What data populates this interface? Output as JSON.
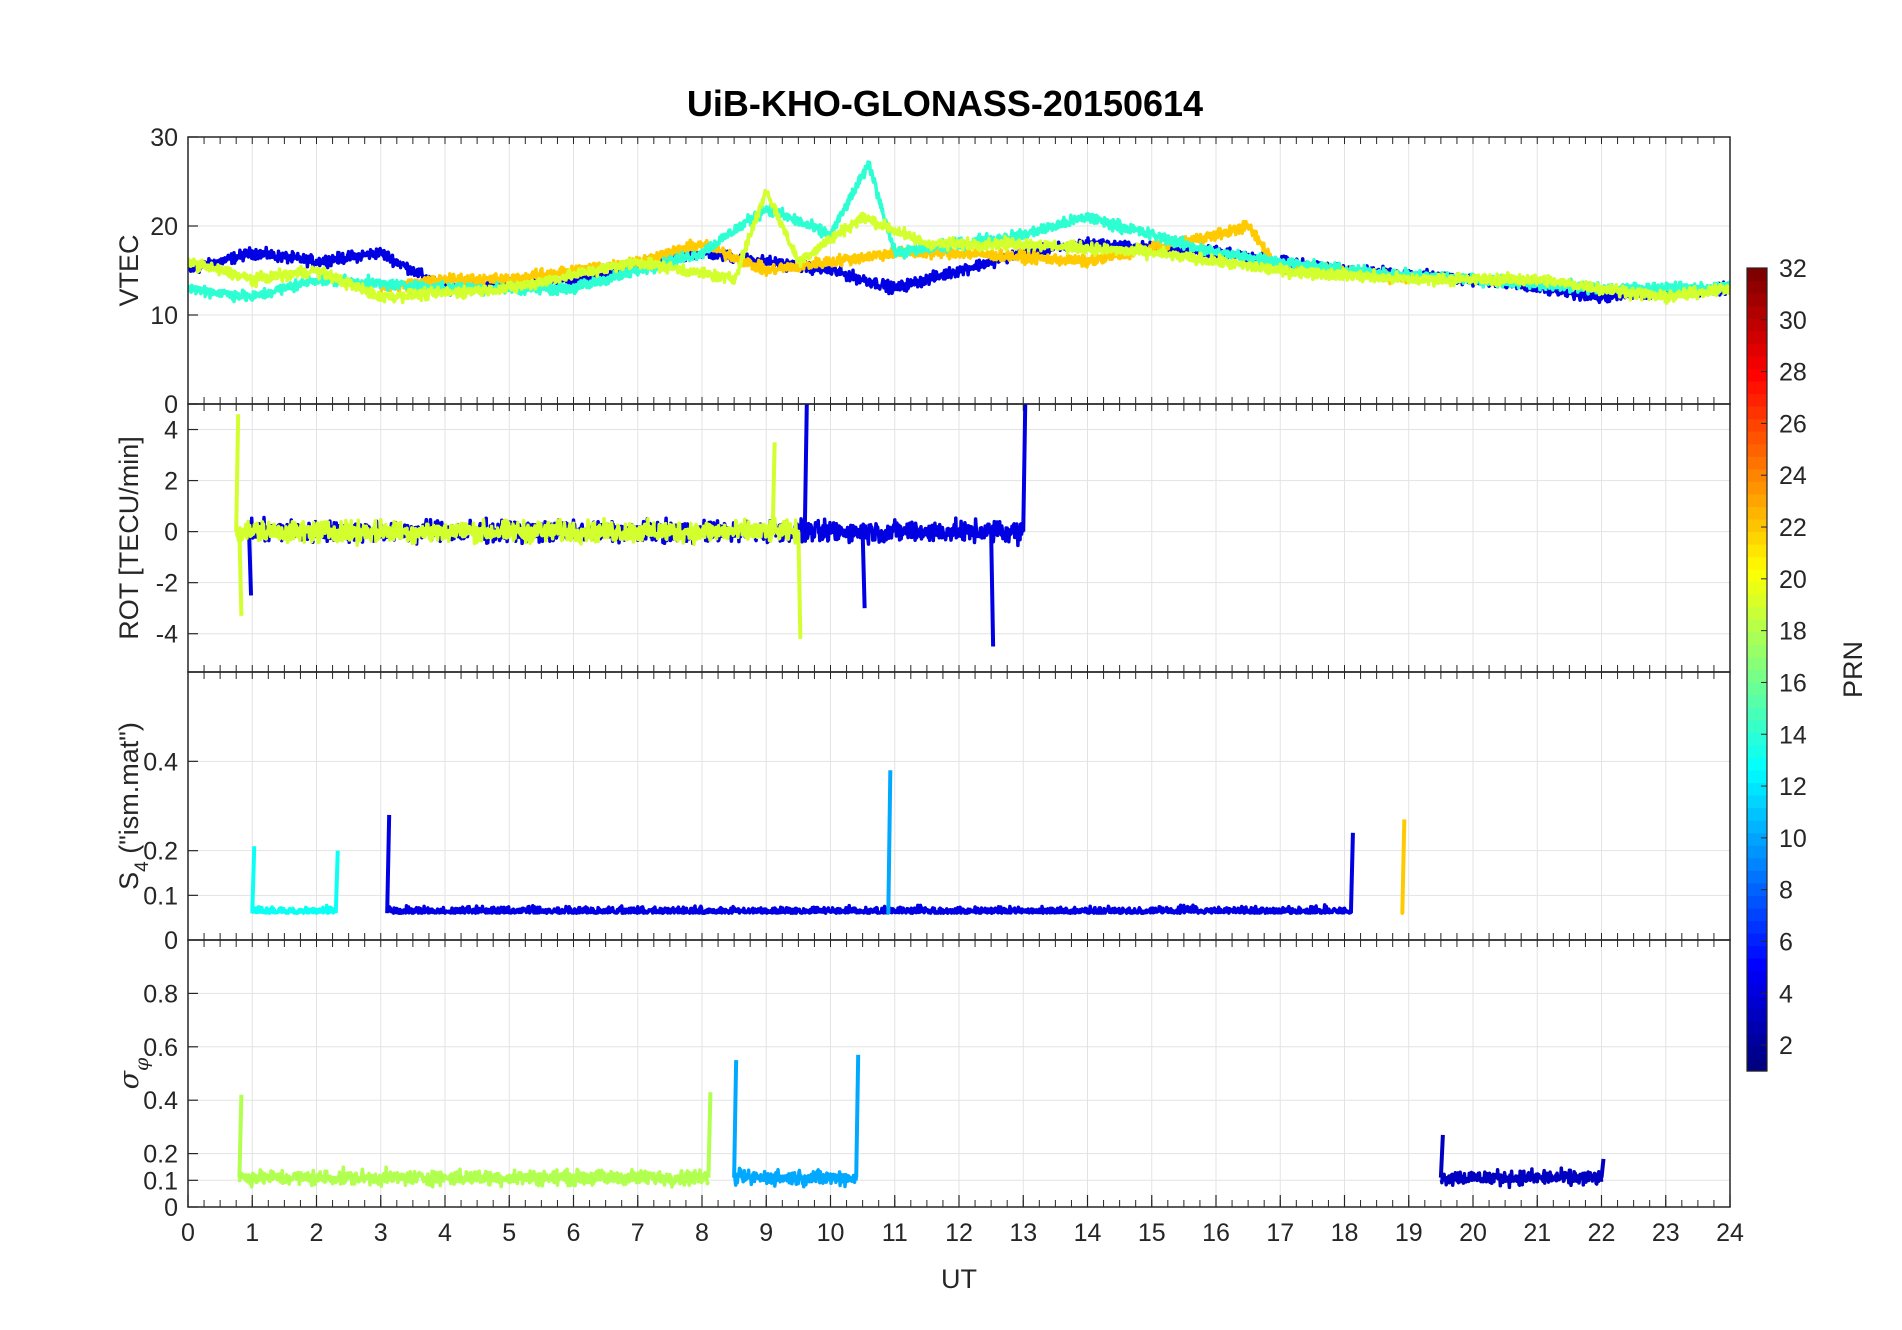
{
  "chart_data": {
    "type": "line",
    "title": "UiB-KHO-GLONASS-20150614",
    "xlabel": "UT",
    "x_ticks": [
      "0",
      "1",
      "2",
      "3",
      "4",
      "5",
      "6",
      "7",
      "8",
      "9",
      "10",
      "11",
      "12",
      "13",
      "14",
      "15",
      "16",
      "17",
      "18",
      "19",
      "20",
      "21",
      "22",
      "23",
      "24"
    ],
    "xlim": [
      0,
      24
    ],
    "grid": true,
    "colorbar": {
      "label": "PRN",
      "range": [
        1,
        32
      ],
      "ticks": [
        "2",
        "4",
        "6",
        "8",
        "10",
        "12",
        "14",
        "16",
        "18",
        "20",
        "22",
        "24",
        "26",
        "28",
        "30",
        "32"
      ],
      "colormap": "jet"
    },
    "panels": [
      {
        "id": "vtec",
        "ylabel": "VTEC",
        "ylim": [
          0,
          30
        ],
        "y_ticks": [
          "0",
          "10",
          "20",
          "30"
        ],
        "series_summary": "multi-satellite VTEC traces, ~10-16 at night, rising to ~18-27 between 8 and 11 UT",
        "samples": [
          {
            "prn": 4,
            "points": [
              [
                0,
                15
              ],
              [
                1,
                17
              ],
              [
                2,
                16
              ],
              [
                3,
                17
              ],
              [
                4,
                13
              ],
              [
                6,
                14
              ],
              [
                8,
                17
              ],
              [
                10,
                15
              ],
              [
                11,
                13
              ],
              [
                12,
                15
              ],
              [
                13,
                17
              ],
              [
                14,
                18
              ],
              [
                16,
                17
              ],
              [
                18,
                15
              ],
              [
                20,
                14
              ],
              [
                22,
                12
              ],
              [
                24,
                13
              ]
            ]
          },
          {
            "prn": 22,
            "points": [
              [
                3,
                13
              ],
              [
                4,
                14
              ],
              [
                5,
                14
              ],
              [
                6,
                15
              ],
              [
                7,
                16
              ],
              [
                8,
                18
              ],
              [
                9,
                15
              ],
              [
                11,
                17
              ],
              [
                12,
                17
              ],
              [
                14,
                16
              ],
              [
                16,
                19
              ],
              [
                16.5,
                20
              ],
              [
                17,
                15
              ],
              [
                18,
                15
              ],
              [
                19,
                14
              ]
            ]
          },
          {
            "prn": 14,
            "points": [
              [
                0,
                13
              ],
              [
                1,
                12
              ],
              [
                2,
                14
              ],
              [
                4,
                13
              ],
              [
                6,
                13
              ],
              [
                8,
                17
              ],
              [
                9,
                22
              ],
              [
                10,
                19
              ],
              [
                10.6,
                27
              ],
              [
                11,
                17
              ],
              [
                13,
                19
              ],
              [
                14,
                21
              ],
              [
                15,
                19
              ],
              [
                16,
                17
              ],
              [
                18,
                15
              ],
              [
                20,
                14
              ],
              [
                22,
                13
              ],
              [
                24,
                13
              ]
            ]
          },
          {
            "prn": 19,
            "points": [
              [
                0,
                16
              ],
              [
                1,
                14
              ],
              [
                2,
                15
              ],
              [
                3,
                12
              ],
              [
                5,
                13
              ],
              [
                7,
                16
              ],
              [
                8.5,
                14
              ],
              [
                9,
                24
              ],
              [
                9.5,
                16
              ],
              [
                10.5,
                21
              ],
              [
                11.5,
                18
              ],
              [
                13,
                18
              ],
              [
                15,
                17
              ],
              [
                17,
                15
              ],
              [
                19,
                14
              ],
              [
                21,
                14
              ],
              [
                23,
                12
              ],
              [
                24,
                13
              ]
            ]
          }
        ]
      },
      {
        "id": "rot",
        "ylabel": "ROT [TECU/min]",
        "ylim": [
          -5.5,
          5
        ],
        "y_ticks": [
          "-4",
          "-2",
          "0",
          "2",
          "4"
        ],
        "series_summary": "rate of TEC, mostly within ±1, bursts up to ±5 around 8-13 UT",
        "samples": [
          {
            "prn": 4,
            "points": [
              [
                0.95,
                -2.5
              ],
              [
                9.6,
                5
              ],
              [
                10.5,
                -3
              ],
              [
                12.5,
                -4.5
              ],
              [
                13,
                5
              ]
            ]
          },
          {
            "prn": 19,
            "points": [
              [
                0.75,
                4.6
              ],
              [
                0.8,
                -3.3
              ],
              [
                9.5,
                -4.2
              ],
              [
                9.1,
                3.5
              ]
            ]
          }
        ]
      },
      {
        "id": "s4",
        "ylabel": "S4 (\"ism.mat\")",
        "ylabel_main": "S",
        "ylabel_sub": "4",
        "ylabel_tail": " (\"ism.mat\")",
        "ylim": [
          0,
          0.6
        ],
        "y_ticks": [
          "0.1",
          "0.2",
          "0.4"
        ],
        "series_summary": "amplitude scintillation index, baseline ~0.05-0.1 with spikes",
        "samples": [
          {
            "prn": 4,
            "points": [
              [
                3.1,
                0.28
              ],
              [
                18.1,
                0.24
              ]
            ]
          },
          {
            "prn": 10,
            "points": [
              [
                10.9,
                0.38
              ]
            ]
          },
          {
            "prn": 22,
            "points": [
              [
                18.9,
                0.27
              ]
            ]
          },
          {
            "prn": 13,
            "points": [
              [
                1,
                0.21
              ],
              [
                2.3,
                0.2
              ]
            ]
          }
        ]
      },
      {
        "id": "sigma_phi",
        "ylabel": "σφ",
        "ylabel_main": "σ",
        "ylabel_sub": "φ",
        "ylim": [
          0,
          1
        ],
        "y_ticks": [
          "0",
          "0.1",
          "0.2",
          "0.4",
          "0.6",
          "0.8"
        ],
        "series_summary": "phase scintillation index, baseline ~0.05-0.2 with spikes up to ~0.57",
        "samples": [
          {
            "prn": 10,
            "points": [
              [
                8.5,
                0.55
              ],
              [
                10.4,
                0.57
              ]
            ]
          },
          {
            "prn": 18,
            "points": [
              [
                0.8,
                0.42
              ],
              [
                8.1,
                0.43
              ]
            ]
          },
          {
            "prn": 3,
            "points": [
              [
                19.5,
                0.27
              ],
              [
                22,
                0.18
              ]
            ]
          }
        ]
      }
    ],
    "extra_tick": "0"
  }
}
